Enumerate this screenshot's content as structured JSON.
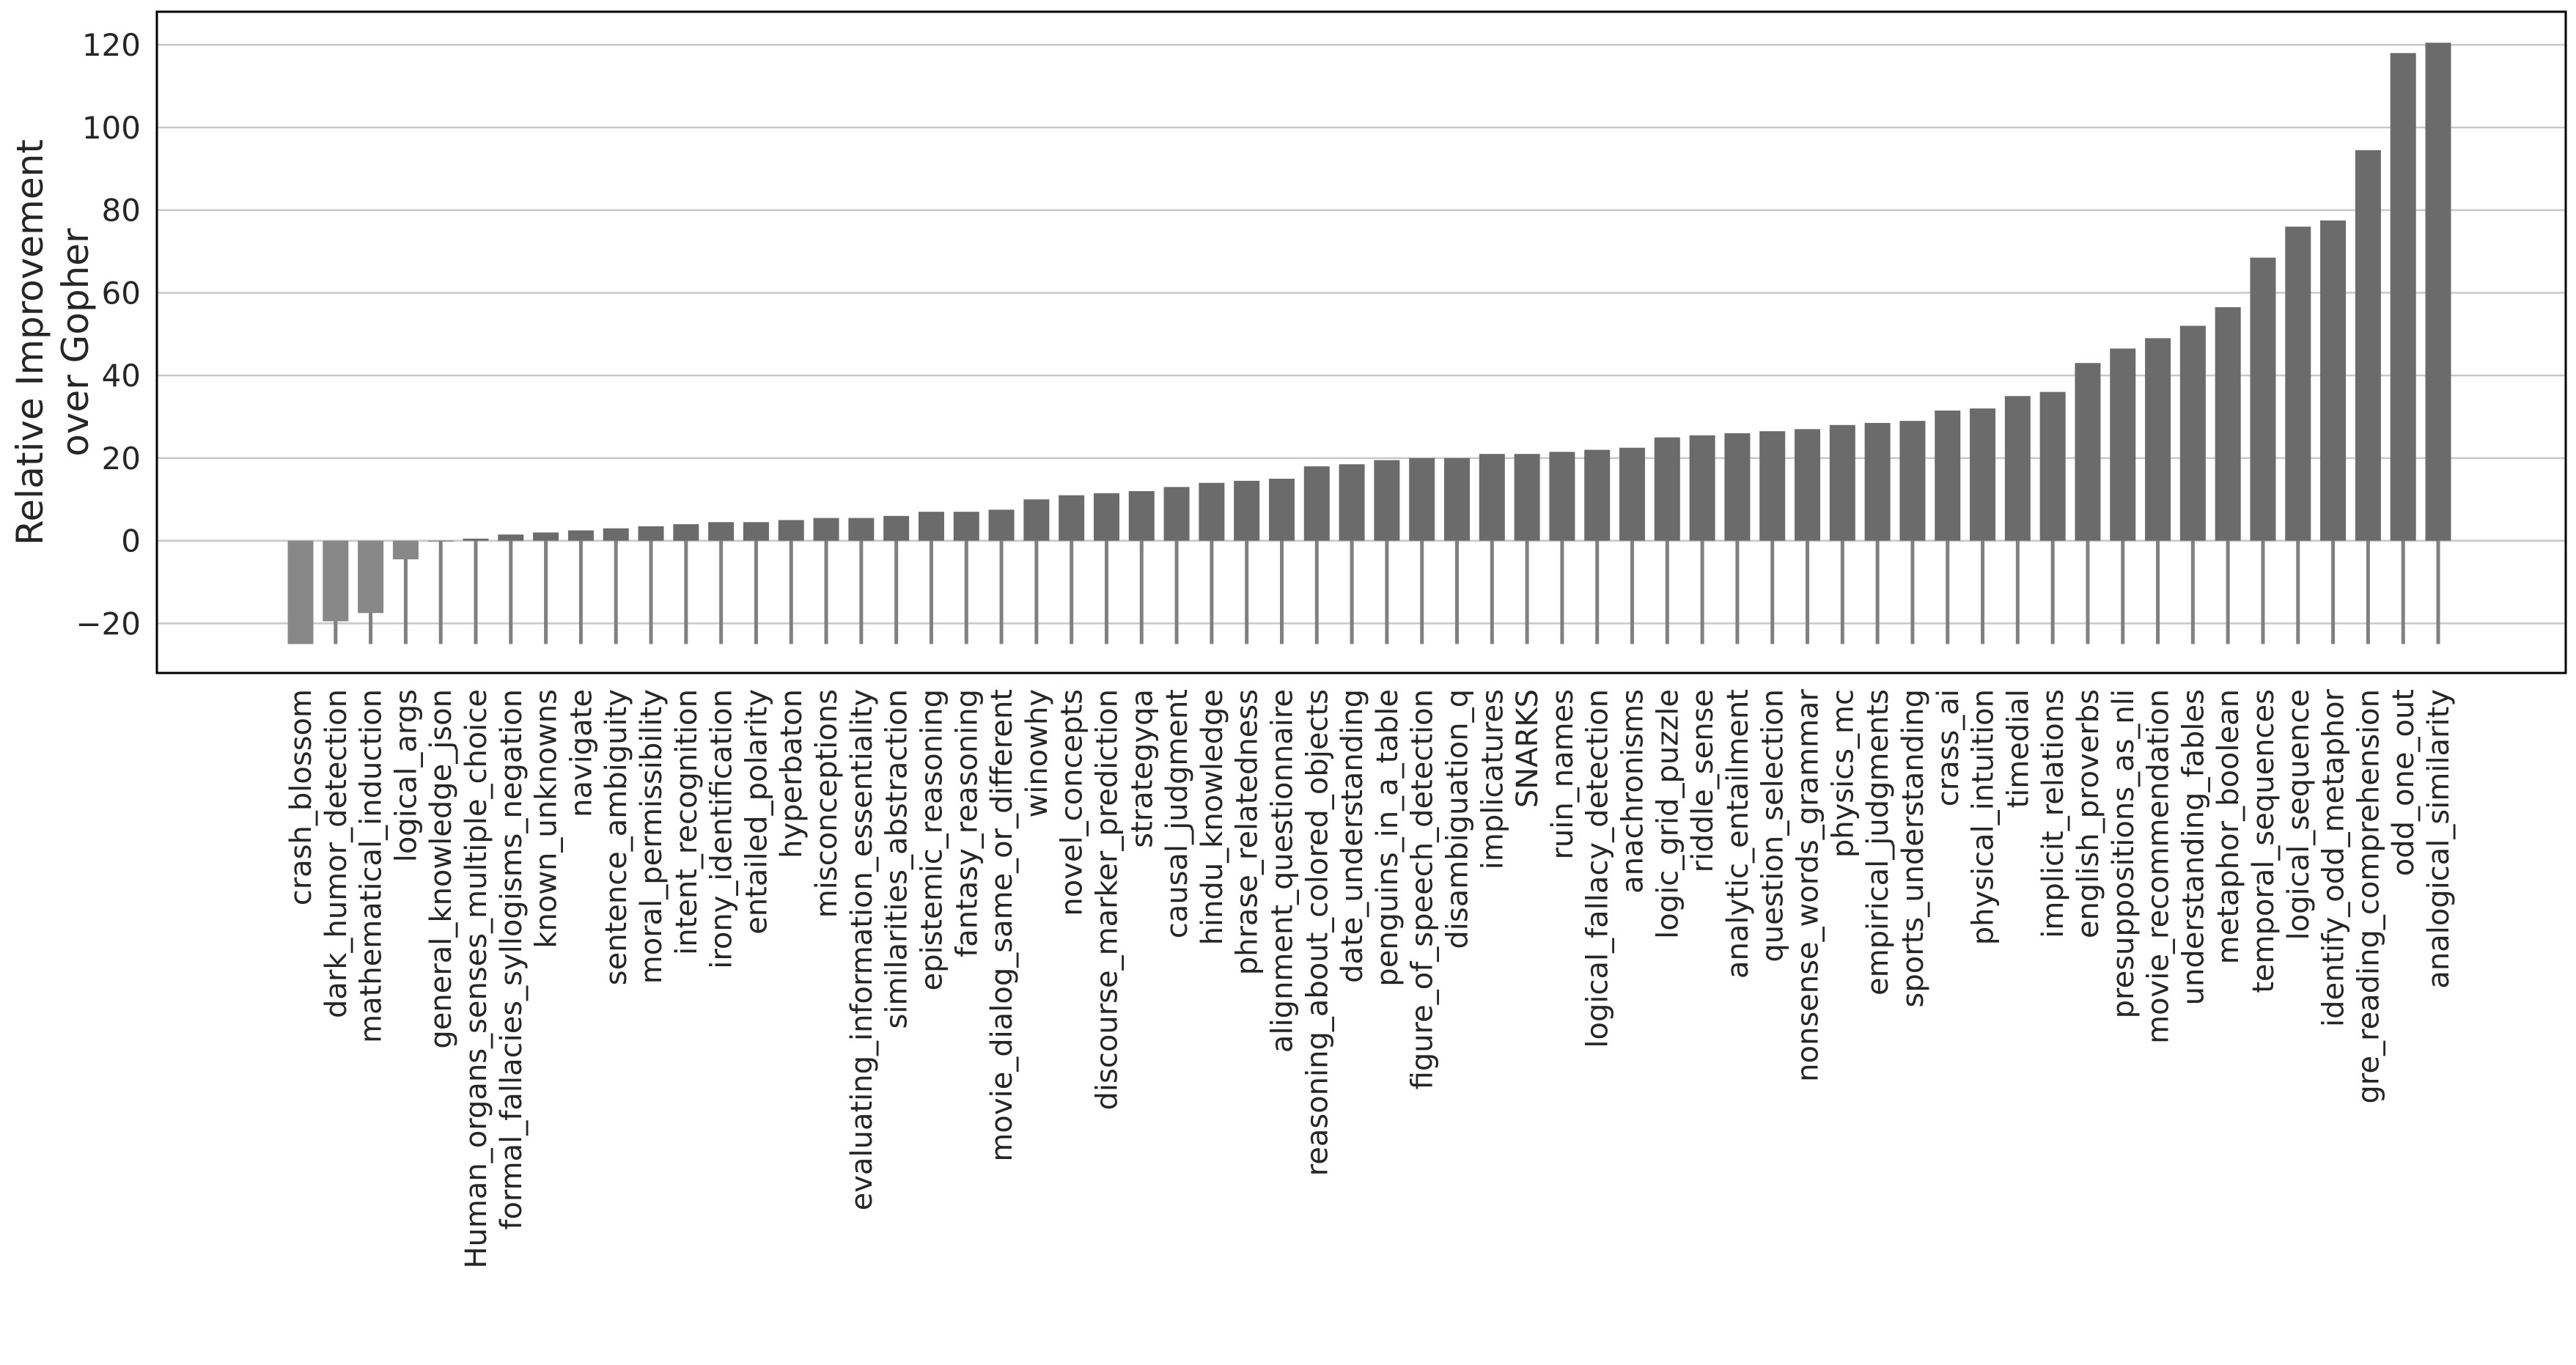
{
  "chart_data": {
    "type": "bar",
    "ylabel": [
      "Relative Improvement",
      "over Gopher"
    ],
    "ylim": [
      -32,
      128
    ],
    "yticks": [
      -20,
      0,
      20,
      40,
      60,
      80,
      100,
      120
    ],
    "ytick_labels": [
      "−20",
      "0",
      "20",
      "40",
      "60",
      "80",
      "100",
      "120"
    ],
    "grid": "horizontal",
    "bar_color": "#6b6b6b",
    "negative_bar_color": "#888888",
    "whisker_color": "#808080",
    "whisker_bottom": -25,
    "categories": [
      "crash_blossom",
      "dark_humor_detection",
      "mathematical_induction",
      "logical_args",
      "general_knowledge_json",
      "Human_organs_senses_multiple_choice",
      "formal_fallacies_syllogisms_negation",
      "known_unknowns",
      "navigate",
      "sentence_ambiguity",
      "moral_permissibility",
      "intent_recognition",
      "irony_identification",
      "entailed_polarity",
      "hyperbaton",
      "misconceptions",
      "evaluating_information_essentiality",
      "similarities_abstraction",
      "epistemic_reasoning",
      "fantasy_reasoning",
      "movie_dialog_same_or_different",
      "winowhy",
      "novel_concepts",
      "discourse_marker_prediction",
      "strategyqa",
      "causal_judgment",
      "hindu_knowledge",
      "phrase_relatedness",
      "alignment_questionnaire",
      "reasoning_about_colored_objects",
      "date_understanding",
      "penguins_in_a_table",
      "figure_of_speech_detection",
      "disambiguation_q",
      "implicatures",
      "SNARKS",
      "ruin_names",
      "logical_fallacy_detection",
      "anachronisms",
      "logic_grid_puzzle",
      "riddle_sense",
      "analytic_entailment",
      "question_selection",
      "nonsense_words_grammar",
      "physics_mc",
      "empirical_judgments",
      "sports_understanding",
      "crass_ai",
      "physical_intuition",
      "timedial",
      "implicit_relations",
      "english_proverbs",
      "presuppositions_as_nli",
      "movie_recommendation",
      "understanding_fables",
      "metaphor_boolean",
      "temporal_sequences",
      "logical_sequence",
      "identify_odd_metaphor",
      "gre_reading_comprehension",
      "odd_one_out",
      "analogical_similarity"
    ],
    "values": [
      -25,
      -19.5,
      -17.5,
      -4.5,
      0,
      0.5,
      1.5,
      2,
      2.5,
      3,
      3.5,
      4,
      4.5,
      4.5,
      5,
      5.5,
      5.5,
      6,
      7,
      7,
      7.5,
      10,
      11,
      11.5,
      12,
      13,
      14,
      14.5,
      15,
      18,
      18.5,
      19.5,
      20,
      20,
      21,
      21,
      21.5,
      22,
      22.5,
      25,
      25.5,
      26,
      26.5,
      27,
      28,
      28.5,
      29,
      31.5,
      32,
      35,
      36,
      43,
      46.5,
      49,
      52,
      56.5,
      68.5,
      76,
      77.5,
      94.5,
      118,
      120.5
    ]
  }
}
